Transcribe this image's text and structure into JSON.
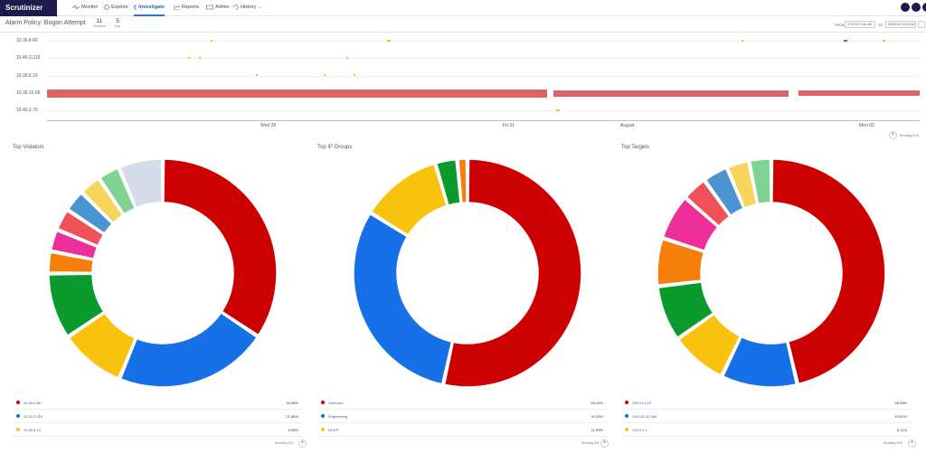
{
  "app": {
    "logo": "Scrutinizer"
  },
  "nav": {
    "items": [
      {
        "label": "Monitor",
        "active": false
      },
      {
        "label": "Explore",
        "active": false
      },
      {
        "label": "Investigate",
        "active": true
      },
      {
        "label": "Reports",
        "active": false
      },
      {
        "label": "Admin",
        "active": false
      },
      {
        "label": "History →",
        "active": false
      }
    ]
  },
  "header": {
    "title": "Alarm Policy: Bogon Attempt",
    "stats": [
      {
        "value": "11",
        "label": "Violators"
      },
      {
        "value": "5",
        "label": "Exp"
      }
    ],
    "from_label": "FROM",
    "from_value": "07/27/20 3:44 AM",
    "to_label": "TO",
    "to_value": "08/03/20 10:03 AM"
  },
  "timeline": {
    "rows": [
      "10.30.4.66",
      "10.40.3.216",
      "10.30.6.10",
      "10.30.10.66",
      "10.40.2.70"
    ],
    "ticks": [
      "Wed 29",
      "Fri 31",
      "August",
      "Mon 03"
    ],
    "showing": "Showing 5/10"
  },
  "colors": {
    "red": "#cc0000",
    "blue": "#1670e8",
    "yellow": "#f9c20c",
    "green": "#0a9b2c",
    "orange": "#f57f0a",
    "pink": "#ee2f9a",
    "coral": "#ef5159",
    "steel": "#4b94d2",
    "gold": "#f7d45a",
    "mint": "#7ed391",
    "lavender": "#d6dbe9"
  },
  "panels": [
    {
      "title": "Top Violators",
      "slices": [
        {
          "color": "#cc0000",
          "value": 34.38
        },
        {
          "color": "#1670e8",
          "value": 21.88
        },
        {
          "color": "#f9c20c",
          "value": 9.38
        },
        {
          "color": "#0a9b2c",
          "value": 9.38
        },
        {
          "color": "#f57f0a",
          "value": 3.13
        },
        {
          "color": "#ee2f9a",
          "value": 3.13
        },
        {
          "color": "#ef5159",
          "value": 3.13
        },
        {
          "color": "#4b94d2",
          "value": 3.13
        },
        {
          "color": "#f7d45a",
          "value": 3.13
        },
        {
          "color": "#7ed391",
          "value": 3.13
        },
        {
          "color": "#d6dbe9",
          "value": 6.3
        }
      ],
      "legend": [
        {
          "name": "10.30.4.66",
          "pct": "34.38%",
          "color": "#cc0000"
        },
        {
          "name": "10.40.3.216",
          "pct": "21.88%",
          "color": "#1670e8"
        },
        {
          "name": "10.30.6.10",
          "pct": "9.38%",
          "color": "#f9c20c"
        }
      ],
      "showing": "Showing 3/11"
    },
    {
      "title": "Top IP Groups",
      "slices": [
        {
          "color": "#cc0000",
          "value": 53.42
        },
        {
          "color": "#1670e8",
          "value": 30.43
        },
        {
          "color": "#f9c20c",
          "value": 11.59
        },
        {
          "color": "#0a9b2c",
          "value": 3.11
        },
        {
          "color": "#f57f0a",
          "value": 1.45
        }
      ],
      "legend": [
        {
          "name": "Unknown",
          "pct": "53.42%",
          "color": "#cc0000"
        },
        {
          "name": "Engineering",
          "pct": "30.43%",
          "color": "#1670e8"
        },
        {
          "name": "DHCP",
          "pct": "11.59%",
          "color": "#f9c20c"
        }
      ],
      "showing": "Showing 3/5"
    },
    {
      "title": "Top Targets",
      "slices": [
        {
          "color": "#cc0000",
          "value": 46.33
        },
        {
          "color": "#1670e8",
          "value": 10.81
        },
        {
          "color": "#f9c20c",
          "value": 8.11
        },
        {
          "color": "#0a9b2c",
          "value": 7.9
        },
        {
          "color": "#f57f0a",
          "value": 6.8
        },
        {
          "color": "#ee2f9a",
          "value": 6.5
        },
        {
          "color": "#ef5159",
          "value": 3.6
        },
        {
          "color": "#4b94d2",
          "value": 3.6
        },
        {
          "color": "#f7d45a",
          "value": 3.2
        },
        {
          "color": "#7ed391",
          "value": 3.15
        }
      ],
      "legend": [
        {
          "name": "199.19.1.10",
          "pct": "46.33%",
          "color": "#cc0000"
        },
        {
          "name": "100.111.25.189",
          "pct": "10.81%",
          "color": "#1670e8"
        },
        {
          "name": "192.0.2.1",
          "pct": "8.11%",
          "color": "#f9c20c"
        }
      ],
      "showing": "Showing 3/10"
    }
  ]
}
